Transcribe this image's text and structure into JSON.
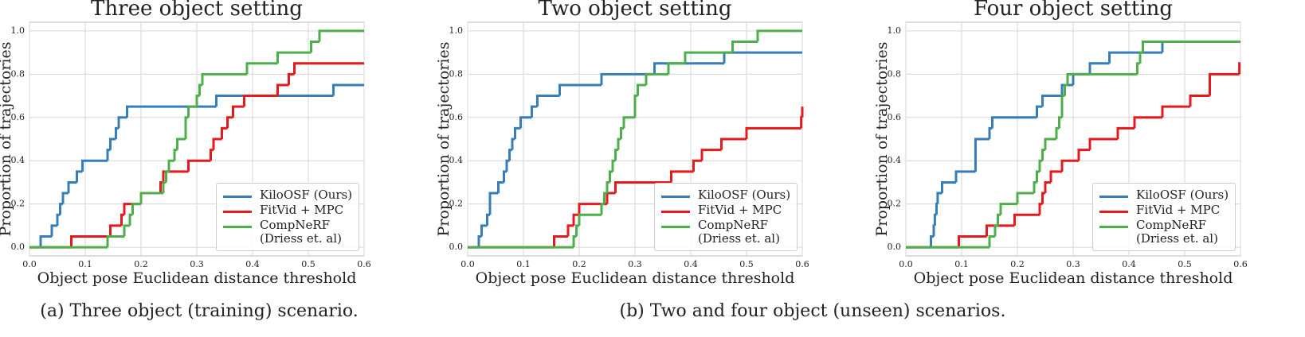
{
  "chart_data": [
    {
      "type": "line",
      "step": "post",
      "title": "Three object setting",
      "xlabel": "Object pose Euclidean distance threshold",
      "ylabel": "Proportion of trajectories",
      "xlim": [
        0,
        0.6
      ],
      "ylim": [
        -0.04,
        1.04
      ],
      "xticks": [
        {
          "value": 0,
          "label": "0.0"
        },
        0.1,
        0.2,
        0.3,
        0.4,
        0.5,
        0.6
      ],
      "yticks": [
        {
          "value": 0,
          "label": "0.0"
        },
        0.2,
        0.4,
        0.6,
        0.8,
        {
          "value": 1,
          "label": "1.0"
        }
      ],
      "grid": true,
      "legend": "lower right",
      "series": [
        {
          "name": "KiloOSF (Ours)",
          "color": "#377eb8",
          "x": [
            0,
            0.02,
            0.04,
            0.05,
            0.055,
            0.06,
            0.07,
            0.085,
            0.095,
            0.14,
            0.145,
            0.155,
            0.16,
            0.175,
            0.335,
            0.545,
            0.6
          ],
          "values": [
            0,
            0.05,
            0.1,
            0.15,
            0.2,
            0.25,
            0.3,
            0.35,
            0.4,
            0.45,
            0.5,
            0.55,
            0.6,
            0.65,
            0.7,
            0.75,
            0.75
          ]
        },
        {
          "name": "FitVid + MPC",
          "color": "#e41a1c",
          "x": [
            0,
            0.075,
            0.145,
            0.165,
            0.17,
            0.2,
            0.235,
            0.24,
            0.285,
            0.325,
            0.33,
            0.345,
            0.355,
            0.365,
            0.385,
            0.445,
            0.465,
            0.475,
            0.6
          ],
          "values": [
            0,
            0.05,
            0.1,
            0.15,
            0.2,
            0.25,
            0.3,
            0.35,
            0.4,
            0.45,
            0.5,
            0.55,
            0.6,
            0.65,
            0.7,
            0.75,
            0.8,
            0.85,
            0.85
          ]
        },
        {
          "name": "CompNeRF\n(Driess et. al)",
          "color": "#4daf4a",
          "x": [
            0,
            0.14,
            0.17,
            0.18,
            0.185,
            0.2,
            0.24,
            0.245,
            0.25,
            0.26,
            0.265,
            0.28,
            0.285,
            0.3,
            0.305,
            0.31,
            0.39,
            0.445,
            0.505,
            0.52,
            0.6
          ],
          "values": [
            0,
            0.05,
            0.1,
            0.15,
            0.2,
            0.25,
            0.3,
            0.35,
            0.4,
            0.45,
            0.5,
            0.6,
            0.65,
            0.7,
            0.75,
            0.8,
            0.85,
            0.9,
            0.95,
            1,
            1
          ]
        }
      ]
    },
    {
      "type": "line",
      "step": "post",
      "title": "Two object setting",
      "xlabel": "Object pose Euclidean distance threshold",
      "ylabel": "Proportion of trajectories",
      "xlim": [
        0,
        0.6
      ],
      "ylim": [
        -0.04,
        1.04
      ],
      "xticks": [
        {
          "value": 0,
          "label": "0.0"
        },
        0.1,
        0.2,
        0.3,
        0.4,
        0.5,
        0.6
      ],
      "yticks": [
        {
          "value": 0,
          "label": "0.0"
        },
        0.2,
        0.4,
        0.6,
        0.8,
        {
          "value": 1,
          "label": "1.0"
        }
      ],
      "grid": true,
      "legend": "lower right",
      "series": [
        {
          "name": "KiloOSF (Ours)",
          "color": "#377eb8",
          "x": [
            0,
            0.02,
            0.025,
            0.035,
            0.04,
            0.055,
            0.065,
            0.07,
            0.075,
            0.08,
            0.085,
            0.095,
            0.115,
            0.125,
            0.165,
            0.24,
            0.335,
            0.46,
            0.6
          ],
          "values": [
            0,
            0.05,
            0.1,
            0.15,
            0.25,
            0.3,
            0.35,
            0.4,
            0.45,
            0.5,
            0.55,
            0.6,
            0.65,
            0.7,
            0.75,
            0.8,
            0.85,
            0.9,
            0.9
          ]
        },
        {
          "name": "FitVid + MPC",
          "color": "#e41a1c",
          "x": [
            0,
            0.155,
            0.18,
            0.19,
            0.2,
            0.25,
            0.265,
            0.365,
            0.405,
            0.42,
            0.455,
            0.5,
            0.598,
            0.6
          ],
          "values": [
            0,
            0.05,
            0.1,
            0.15,
            0.2,
            0.25,
            0.3,
            0.35,
            0.4,
            0.45,
            0.5,
            0.55,
            0.6,
            0.65
          ]
        },
        {
          "name": "CompNeRF\n(Driess et. al)",
          "color": "#4daf4a",
          "x": [
            0,
            0.19,
            0.195,
            0.2,
            0.24,
            0.245,
            0.25,
            0.255,
            0.26,
            0.265,
            0.27,
            0.275,
            0.28,
            0.3,
            0.305,
            0.32,
            0.36,
            0.39,
            0.475,
            0.52,
            0.6
          ],
          "values": [
            0,
            0.05,
            0.1,
            0.15,
            0.2,
            0.25,
            0.3,
            0.35,
            0.4,
            0.45,
            0.5,
            0.55,
            0.6,
            0.7,
            0.75,
            0.8,
            0.85,
            0.9,
            0.95,
            1,
            1
          ]
        }
      ]
    },
    {
      "type": "line",
      "step": "post",
      "title": "Four object setting",
      "xlabel": "Object pose Euclidean distance threshold",
      "ylabel": "Proportion of trajectories",
      "xlim": [
        0,
        0.6
      ],
      "ylim": [
        -0.04,
        1.04
      ],
      "xticks": [
        {
          "value": 0,
          "label": "0.0"
        },
        0.1,
        0.2,
        0.3,
        0.4,
        0.5,
        0.6
      ],
      "yticks": [
        {
          "value": 0,
          "label": "0.0"
        },
        0.2,
        0.4,
        0.6,
        0.8,
        {
          "value": 1,
          "label": "1.0"
        }
      ],
      "grid": true,
      "legend": "lower right",
      "series": [
        {
          "name": "KiloOSF (Ours)",
          "color": "#377eb8",
          "x": [
            0,
            0.045,
            0.05,
            0.052,
            0.055,
            0.057,
            0.065,
            0.09,
            0.125,
            0.15,
            0.155,
            0.235,
            0.245,
            0.28,
            0.3,
            0.33,
            0.365,
            0.46,
            0.6
          ],
          "values": [
            0,
            0.05,
            0.1,
            0.15,
            0.2,
            0.25,
            0.3,
            0.35,
            0.5,
            0.55,
            0.6,
            0.65,
            0.7,
            0.75,
            0.8,
            0.85,
            0.9,
            0.95,
            0.95
          ]
        },
        {
          "name": "FitVid + MPC",
          "color": "#e41a1c",
          "x": [
            0,
            0.095,
            0.145,
            0.195,
            0.24,
            0.245,
            0.25,
            0.26,
            0.28,
            0.31,
            0.33,
            0.38,
            0.41,
            0.46,
            0.51,
            0.545,
            0.598,
            0.6
          ],
          "values": [
            0,
            0.05,
            0.1,
            0.15,
            0.2,
            0.25,
            0.3,
            0.35,
            0.4,
            0.45,
            0.5,
            0.55,
            0.6,
            0.65,
            0.7,
            0.8,
            0.85,
            0.85
          ]
        },
        {
          "name": "CompNeRF\n(Driess et. al)",
          "color": "#4daf4a",
          "x": [
            0,
            0.15,
            0.16,
            0.165,
            0.17,
            0.2,
            0.23,
            0.235,
            0.24,
            0.245,
            0.25,
            0.27,
            0.275,
            0.28,
            0.285,
            0.29,
            0.415,
            0.42,
            0.425,
            0.6
          ],
          "values": [
            0,
            0.05,
            0.1,
            0.15,
            0.2,
            0.25,
            0.3,
            0.35,
            0.4,
            0.45,
            0.5,
            0.55,
            0.6,
            0.7,
            0.75,
            0.8,
            0.85,
            0.9,
            0.95,
            0.95
          ]
        }
      ]
    }
  ],
  "captions": [
    "(a) Three object (training) scenario.",
    "(b) Two and four object (unseen) scenarios."
  ]
}
